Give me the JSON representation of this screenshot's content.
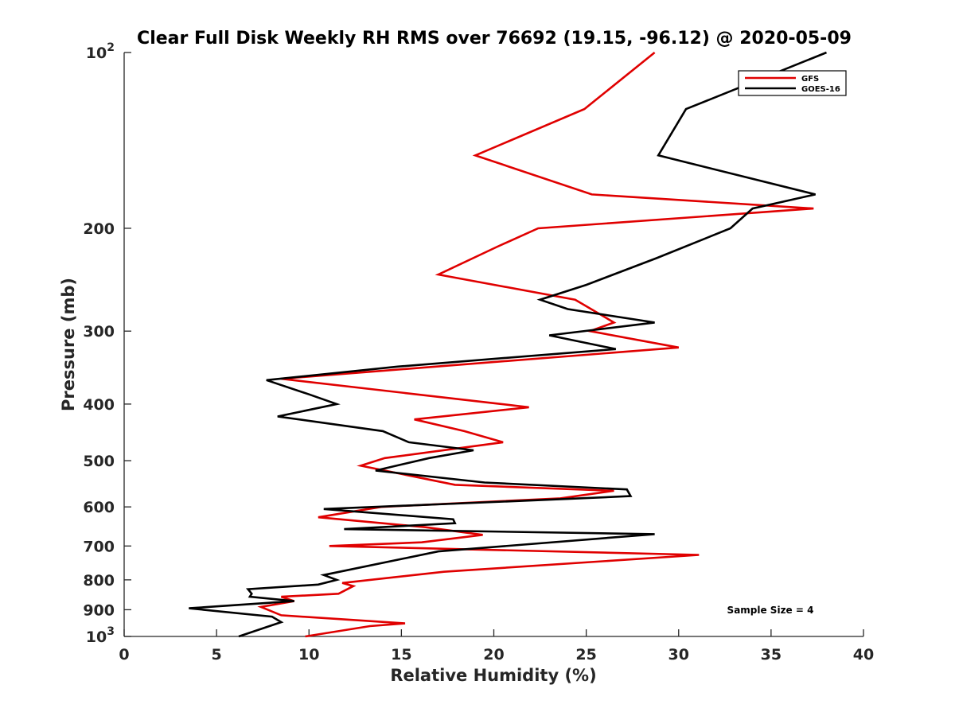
{
  "chart_data": {
    "type": "line",
    "title": "Clear Full Disk Weekly RH RMS over 76692 (19.15, -96.12) @ 2020-05-09",
    "xlabel": "Relative Humidity (%)",
    "ylabel": "Pressure (mb)",
    "xlim": [
      0,
      40
    ],
    "ylim": [
      100,
      1000
    ],
    "yscale": "log",
    "yreversed": true,
    "x_ticks": [
      "0",
      "5",
      "10",
      "15",
      "20",
      "25",
      "30",
      "35",
      "40"
    ],
    "y_ticks": [
      {
        "value": 100,
        "base": "10",
        "exp": "2"
      },
      {
        "value": 200,
        "label": "200"
      },
      {
        "value": 300,
        "label": "300"
      },
      {
        "value": 400,
        "label": "400"
      },
      {
        "value": 500,
        "label": "500"
      },
      {
        "value": 600,
        "label": "600"
      },
      {
        "value": 700,
        "label": "700"
      },
      {
        "value": 800,
        "label": "800"
      },
      {
        "value": 900,
        "label": "900"
      },
      {
        "value": 1000,
        "base": "10",
        "exp": "3"
      }
    ],
    "legend_position": "top-right",
    "annotation": "Sample Size = 4",
    "series": [
      {
        "name": "GFS",
        "color": "#e00000",
        "points": [
          [
            28.7,
            100
          ],
          [
            24.9,
            125
          ],
          [
            19.0,
            150
          ],
          [
            25.3,
            175
          ],
          [
            37.3,
            185
          ],
          [
            22.4,
            200
          ],
          [
            20.2,
            215
          ],
          [
            17.0,
            240
          ],
          [
            24.4,
            265
          ],
          [
            26.5,
            290
          ],
          [
            25.2,
            300
          ],
          [
            30.0,
            320
          ],
          [
            8.5,
            362
          ],
          [
            21.9,
            405
          ],
          [
            15.7,
            425
          ],
          [
            18.4,
            445
          ],
          [
            20.5,
            465
          ],
          [
            14.1,
            495
          ],
          [
            12.8,
            510
          ],
          [
            17.9,
            550
          ],
          [
            26.5,
            563
          ],
          [
            23.6,
            580
          ],
          [
            13.9,
            600
          ],
          [
            10.5,
            625
          ],
          [
            16.3,
            650
          ],
          [
            19.4,
            670
          ],
          [
            16.1,
            690
          ],
          [
            11.1,
            700
          ],
          [
            31.1,
            725
          ],
          [
            17.3,
            775
          ],
          [
            11.8,
            810
          ],
          [
            12.4,
            820
          ],
          [
            11.6,
            845
          ],
          [
            8.5,
            855
          ],
          [
            9.2,
            870
          ],
          [
            7.4,
            890
          ],
          [
            8.5,
            920
          ],
          [
            15.2,
            950
          ],
          [
            13.3,
            960
          ],
          [
            9.8,
            1000
          ]
        ]
      },
      {
        "name": "GOES-16",
        "color": "#000000",
        "points": [
          [
            38.0,
            100
          ],
          [
            30.4,
            125
          ],
          [
            28.9,
            150
          ],
          [
            37.4,
            175
          ],
          [
            34.0,
            185
          ],
          [
            32.8,
            200
          ],
          [
            28.8,
            225
          ],
          [
            25.0,
            250
          ],
          [
            22.5,
            265
          ],
          [
            24.0,
            275
          ],
          [
            28.7,
            290
          ],
          [
            23.0,
            305
          ],
          [
            26.6,
            322
          ],
          [
            14.8,
            345
          ],
          [
            7.7,
            364
          ],
          [
            10.0,
            385
          ],
          [
            11.5,
            400
          ],
          [
            8.3,
            420
          ],
          [
            14.0,
            445
          ],
          [
            15.4,
            465
          ],
          [
            18.9,
            480
          ],
          [
            16.5,
            495
          ],
          [
            13.6,
            520
          ],
          [
            19.5,
            545
          ],
          [
            27.2,
            560
          ],
          [
            27.4,
            575
          ],
          [
            22.0,
            585
          ],
          [
            10.8,
            605
          ],
          [
            17.8,
            630
          ],
          [
            17.9,
            640
          ],
          [
            11.9,
            655
          ],
          [
            28.7,
            668
          ],
          [
            17.0,
            715
          ],
          [
            10.8,
            785
          ],
          [
            11.5,
            800
          ],
          [
            10.5,
            815
          ],
          [
            6.7,
            830
          ],
          [
            6.9,
            845
          ],
          [
            6.8,
            855
          ],
          [
            9.2,
            870
          ],
          [
            3.5,
            895
          ],
          [
            8.0,
            925
          ],
          [
            8.5,
            945
          ],
          [
            6.2,
            1000
          ]
        ]
      }
    ]
  }
}
